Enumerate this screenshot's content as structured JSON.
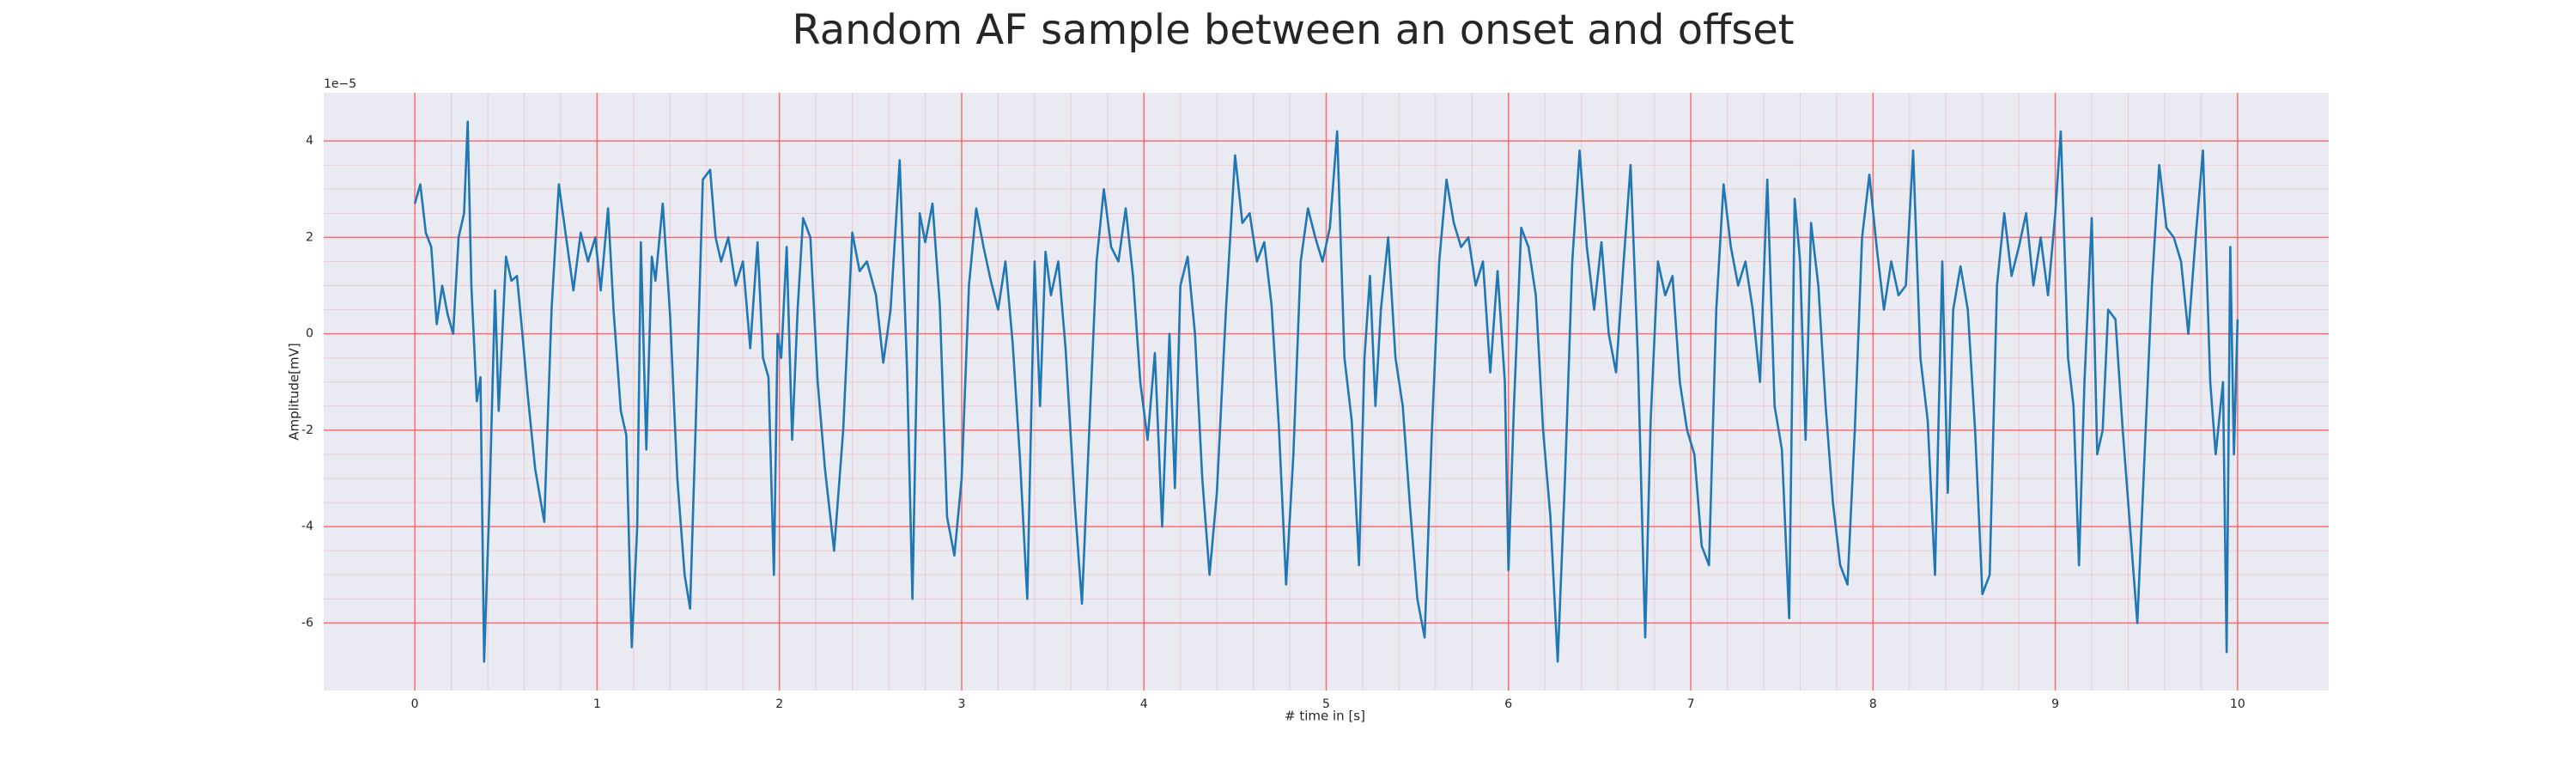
{
  "chart_data": {
    "type": "line",
    "title": "Random AF sample between an onset and offset",
    "xlabel": "# time in [s]",
    "ylabel": "Amplitude[mV]",
    "y_offset_label": "1e−5",
    "xlim": [
      -0.5,
      10.5
    ],
    "xticks": [
      0,
      1,
      2,
      3,
      4,
      5,
      6,
      7,
      8,
      9,
      10
    ],
    "ylim": [
      -7.4,
      5.0
    ],
    "yticks": [
      -6,
      -4,
      -2,
      0,
      2,
      4
    ],
    "grid": true,
    "minor_grid": true,
    "grid_color": "#ff4d4d",
    "background": "#eaeaf2",
    "x": [
      0.0,
      0.03,
      0.06,
      0.09,
      0.12,
      0.15,
      0.18,
      0.21,
      0.24,
      0.27,
      0.29,
      0.31,
      0.34,
      0.36,
      0.38,
      0.41,
      0.44,
      0.46,
      0.5,
      0.53,
      0.56,
      0.59,
      0.62,
      0.66,
      0.71,
      0.75,
      0.79,
      0.83,
      0.87,
      0.91,
      0.95,
      0.99,
      1.02,
      1.06,
      1.09,
      1.13,
      1.16,
      1.19,
      1.22,
      1.24,
      1.27,
      1.3,
      1.32,
      1.36,
      1.4,
      1.44,
      1.48,
      1.51,
      1.54,
      1.58,
      1.62,
      1.65,
      1.68,
      1.72,
      1.76,
      1.8,
      1.84,
      1.88,
      1.91,
      1.94,
      1.97,
      1.99,
      2.01,
      2.04,
      2.07,
      2.1,
      2.13,
      2.17,
      2.21,
      2.25,
      2.3,
      2.35,
      2.4,
      2.44,
      2.48,
      2.53,
      2.57,
      2.61,
      2.66,
      2.7,
      2.73,
      2.77,
      2.8,
      2.84,
      2.88,
      2.92,
      2.96,
      3.0,
      3.04,
      3.08,
      3.12,
      3.16,
      3.2,
      3.24,
      3.28,
      3.32,
      3.36,
      3.4,
      3.43,
      3.46,
      3.49,
      3.53,
      3.57,
      3.62,
      3.66,
      3.7,
      3.74,
      3.78,
      3.82,
      3.86,
      3.9,
      3.94,
      3.98,
      4.02,
      4.06,
      4.1,
      4.14,
      4.17,
      4.2,
      4.24,
      4.28,
      4.32,
      4.36,
      4.4,
      4.45,
      4.5,
      4.54,
      4.58,
      4.62,
      4.66,
      4.7,
      4.74,
      4.78,
      4.82,
      4.86,
      4.9,
      4.94,
      4.98,
      5.02,
      5.06,
      5.1,
      5.14,
      5.18,
      5.21,
      5.24,
      5.27,
      5.3,
      5.34,
      5.38,
      5.42,
      5.46,
      5.5,
      5.54,
      5.58,
      5.62,
      5.66,
      5.7,
      5.74,
      5.78,
      5.82,
      5.86,
      5.9,
      5.94,
      5.98,
      6.0,
      6.03,
      6.07,
      6.11,
      6.15,
      6.19,
      6.23,
      6.27,
      6.31,
      6.35,
      6.39,
      6.43,
      6.47,
      6.51,
      6.55,
      6.59,
      6.63,
      6.67,
      6.71,
      6.75,
      6.78,
      6.82,
      6.86,
      6.9,
      6.94,
      6.98,
      7.02,
      7.06,
      7.1,
      7.14,
      7.18,
      7.22,
      7.26,
      7.3,
      7.34,
      7.38,
      7.42,
      7.46,
      7.5,
      7.54,
      7.57,
      7.6,
      7.63,
      7.66,
      7.7,
      7.74,
      7.78,
      7.82,
      7.86,
      7.9,
      7.94,
      7.98,
      8.02,
      8.06,
      8.1,
      8.14,
      8.18,
      8.22,
      8.26,
      8.3,
      8.34,
      8.38,
      8.41,
      8.44,
      8.48,
      8.52,
      8.56,
      8.6,
      8.64,
      8.68,
      8.72,
      8.76,
      8.8,
      8.84,
      8.88,
      8.92,
      8.96,
      9.0,
      9.03,
      9.07,
      9.1,
      9.13,
      9.16,
      9.2,
      9.23,
      9.26,
      9.29,
      9.33,
      9.37,
      9.41,
      9.45,
      9.49,
      9.53,
      9.57,
      9.61,
      9.65,
      9.69,
      9.73,
      9.77,
      9.81,
      9.85,
      9.88,
      9.92,
      9.94,
      9.96,
      9.98,
      10.0
    ],
    "series": [
      {
        "color": "#1f77b4",
        "values": [
          2.7,
          3.1,
          2.1,
          1.8,
          0.2,
          1.0,
          0.4,
          0.0,
          2.0,
          2.5,
          4.4,
          1.0,
          -1.4,
          -0.9,
          -6.8,
          -3.4,
          0.9,
          -1.6,
          1.6,
          1.1,
          1.2,
          0.0,
          -1.3,
          -2.8,
          -3.9,
          0.5,
          3.1,
          2.0,
          0.9,
          2.1,
          1.5,
          2.0,
          0.9,
          2.6,
          0.5,
          -1.6,
          -2.1,
          -6.5,
          -4.0,
          1.9,
          -2.4,
          1.6,
          1.1,
          2.7,
          0.4,
          -3.0,
          -5.0,
          -5.7,
          -2.0,
          3.2,
          3.4,
          2.0,
          1.5,
          2.0,
          1.0,
          1.5,
          -0.3,
          1.9,
          -0.5,
          -0.9,
          -5.0,
          0.0,
          -0.5,
          1.8,
          -2.2,
          0.5,
          2.4,
          2.0,
          -1.0,
          -2.8,
          -4.5,
          -2.0,
          2.1,
          1.3,
          1.5,
          0.8,
          -0.6,
          0.5,
          3.6,
          -0.7,
          -5.5,
          2.5,
          1.9,
          2.7,
          0.6,
          -3.8,
          -4.6,
          -3.0,
          1.0,
          2.6,
          1.8,
          1.1,
          0.5,
          1.5,
          -0.2,
          -2.6,
          -5.5,
          1.5,
          -1.5,
          1.7,
          0.8,
          1.5,
          -0.3,
          -3.5,
          -5.6,
          -2.0,
          1.5,
          3.0,
          1.8,
          1.5,
          2.6,
          1.2,
          -1.0,
          -2.2,
          -0.4,
          -4.0,
          0.0,
          -3.2,
          1.0,
          1.6,
          0.0,
          -3.0,
          -5.0,
          -3.3,
          0.5,
          3.7,
          2.3,
          2.5,
          1.5,
          1.9,
          0.6,
          -1.9,
          -5.2,
          -2.5,
          1.5,
          2.6,
          2.0,
          1.5,
          2.2,
          4.2,
          -0.5,
          -1.8,
          -4.8,
          -0.5,
          1.2,
          -1.5,
          0.5,
          2.0,
          -0.5,
          -1.5,
          -3.6,
          -5.5,
          -6.3,
          -2.0,
          1.5,
          3.2,
          2.3,
          1.8,
          2.0,
          1.0,
          1.5,
          -0.8,
          1.3,
          -1.0,
          -4.9,
          -1.5,
          2.2,
          1.8,
          0.8,
          -2.0,
          -3.8,
          -6.8,
          -3.0,
          1.5,
          3.8,
          1.8,
          0.5,
          1.9,
          0.0,
          -0.8,
          1.4,
          3.5,
          -0.5,
          -6.3,
          -1.8,
          1.5,
          0.8,
          1.2,
          -1.0,
          -2.0,
          -2.5,
          -4.4,
          -4.8,
          0.5,
          3.1,
          1.8,
          1.0,
          1.5,
          0.5,
          -1.0,
          3.2,
          -1.5,
          -2.4,
          -5.9,
          2.8,
          1.5,
          -2.2,
          2.3,
          1.0,
          -1.5,
          -3.5,
          -4.8,
          -5.2,
          -2.0,
          2.0,
          3.3,
          1.8,
          0.5,
          1.5,
          0.8,
          1.0,
          3.8,
          -0.5,
          -1.8,
          -5.0,
          1.5,
          -3.3,
          0.5,
          1.4,
          0.5,
          -2.0,
          -5.4,
          -5.0,
          1.0,
          2.5,
          1.2,
          1.8,
          2.5,
          1.0,
          2.0,
          0.8,
          2.5,
          4.2,
          -0.5,
          -1.5,
          -4.8,
          -1.0,
          2.4,
          -2.5,
          -2.0,
          0.5,
          0.3,
          -2.0,
          -4.0,
          -6.0,
          -2.5,
          1.0,
          3.5,
          2.2,
          2.0,
          1.5,
          0.0,
          2.0,
          3.8,
          -1.0,
          -2.5,
          -1.0,
          -6.6,
          1.8,
          -2.5,
          0.3
        ]
      }
    ]
  }
}
